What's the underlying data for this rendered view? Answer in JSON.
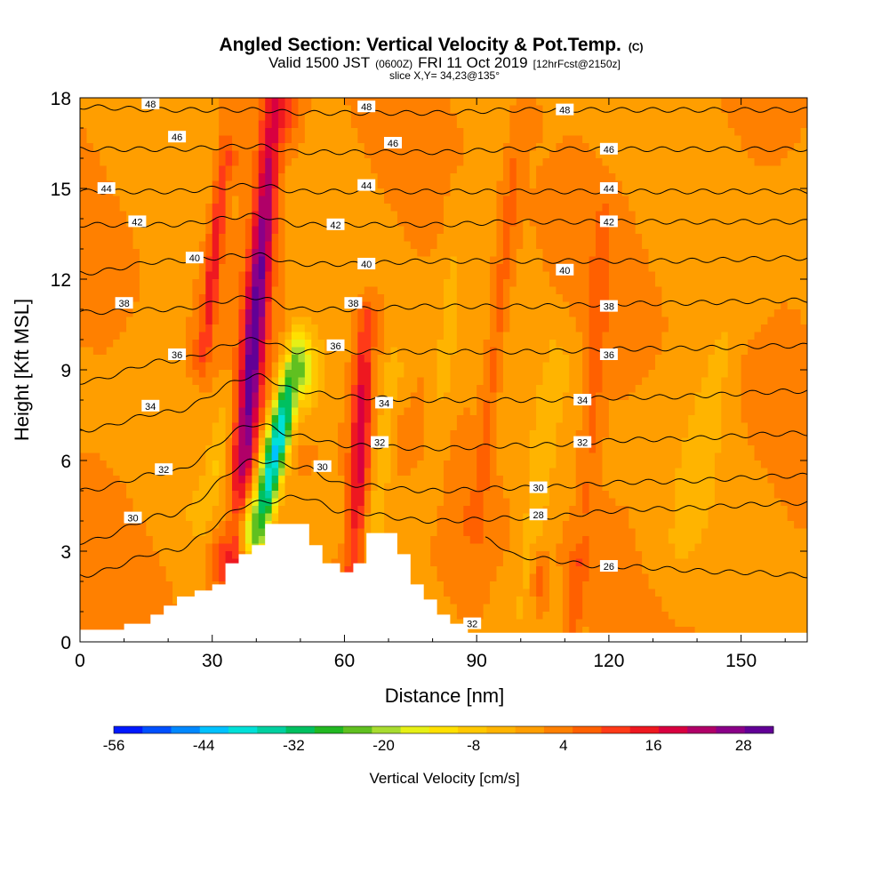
{
  "header": {
    "title_main": "Angled Section: Vertical Velocity & Pot.Temp.",
    "title_units": "(C)",
    "subtitle_prefix": "Valid 1500 JST",
    "subtitle_utc": "(0600Z)",
    "subtitle_date": "FRI 11 Oct 2019",
    "subtitle_fcst": "[12hrFcst@2150z]",
    "slice": "slice X,Y= 34,23@135°"
  },
  "colors": {
    "palette": [
      "#0019ff",
      "#0050ff",
      "#0088ff",
      "#00c2ff",
      "#00e0d8",
      "#00d0a0",
      "#00c060",
      "#22b822",
      "#60c020",
      "#a8dc30",
      "#e6f016",
      "#ffe000",
      "#ffc800",
      "#ffb400",
      "#ff9e00",
      "#ff8000",
      "#ff6000",
      "#ff3a18",
      "#ee1820",
      "#d80040",
      "#b00068",
      "#8a0088",
      "#620096"
    ],
    "terrain": "#ffffff",
    "contour": "#000000"
  },
  "chart_data": {
    "type": "heatmap",
    "title": "Angled Section: Vertical Velocity & Pot.Temp.",
    "xlabel": "Distance [nm]",
    "ylabel": "Height [Kft MSL]",
    "xlim": [
      0,
      165
    ],
    "ylim": [
      0,
      18
    ],
    "xticks": [
      "0",
      "30",
      "60",
      "90",
      "120",
      "150"
    ],
    "yticks": [
      "0",
      "3",
      "6",
      "9",
      "12",
      "15",
      "18"
    ],
    "colorbar": {
      "label": "Vertical Velocity [cm/s]",
      "min": -58,
      "step": 4,
      "ticks": [
        "-56",
        "-44",
        "-32",
        "-20",
        "-8",
        "4",
        "16",
        "28"
      ]
    },
    "terrain_kft": [
      [
        0,
        0.4
      ],
      [
        10,
        0.4
      ],
      [
        10,
        0.6
      ],
      [
        16,
        0.6
      ],
      [
        16,
        0.9
      ],
      [
        19,
        0.9
      ],
      [
        19,
        1.2
      ],
      [
        22,
        1.2
      ],
      [
        22,
        1.5
      ],
      [
        26,
        1.5
      ],
      [
        26,
        1.7
      ],
      [
        30,
        1.7
      ],
      [
        30,
        1.9
      ],
      [
        33,
        1.9
      ],
      [
        33,
        2.6
      ],
      [
        36,
        2.6
      ],
      [
        36,
        2.9
      ],
      [
        39,
        2.9
      ],
      [
        39,
        3.2
      ],
      [
        42,
        3.2
      ],
      [
        42,
        3.9
      ],
      [
        52,
        3.9
      ],
      [
        52,
        3.2
      ],
      [
        55,
        3.2
      ],
      [
        55,
        2.6
      ],
      [
        59,
        2.6
      ],
      [
        59,
        2.3
      ],
      [
        62,
        2.3
      ],
      [
        62,
        2.6
      ],
      [
        65,
        2.6
      ],
      [
        65,
        3.6
      ],
      [
        72,
        3.6
      ],
      [
        72,
        2.9
      ],
      [
        75,
        2.9
      ],
      [
        75,
        1.9
      ],
      [
        78,
        1.9
      ],
      [
        78,
        1.4
      ],
      [
        81,
        1.4
      ],
      [
        81,
        0.9
      ],
      [
        84,
        0.9
      ],
      [
        84,
        0.6
      ],
      [
        88,
        0.6
      ],
      [
        88,
        0.3
      ],
      [
        165,
        0.3
      ]
    ],
    "features": [
      {
        "x0": 35,
        "y0": 2.7,
        "x1": 44,
        "y1": 17.5,
        "w": 3.2,
        "amp": 30
      },
      {
        "x0": 62,
        "y0": 2.4,
        "x1": 65,
        "y1": 10.5,
        "w": 2.3,
        "amp": 20
      },
      {
        "x0": 28,
        "y0": 9.5,
        "x1": 33,
        "y1": 16.0,
        "w": 2.0,
        "amp": 16
      },
      {
        "x0": 90,
        "y0": 4.0,
        "x1": 100,
        "y1": 17.5,
        "w": 2.6,
        "amp": 7
      },
      {
        "x0": 114,
        "y0": 3.0,
        "x1": 119,
        "y1": 14.0,
        "w": 2.6,
        "amp": 6
      },
      {
        "x0": 112,
        "y0": 0.5,
        "x1": 113,
        "y1": 2.5,
        "w": 1.5,
        "amp": 9
      },
      {
        "x0": 104,
        "y0": 1.3,
        "x1": 104,
        "y1": 2.8,
        "w": 1.2,
        "amp": 7
      },
      {
        "x0": 40,
        "y0": 3.8,
        "x1": 49,
        "y1": 9.0,
        "w": 3.2,
        "amp": -46
      },
      {
        "x0": 28,
        "y0": 4.0,
        "x1": 34,
        "y1": 8.0,
        "w": 2.5,
        "amp": -6
      },
      {
        "x0": 67,
        "y0": 4.0,
        "x1": 71,
        "y1": 9.0,
        "w": 2.5,
        "amp": -8
      },
      {
        "x0": 135,
        "y0": 3.0,
        "x1": 150,
        "y1": 12.0,
        "w": 5.0,
        "amp": -5
      },
      {
        "x0": 80,
        "y0": 5.0,
        "x1": 86,
        "y1": 14.0,
        "w": 3.5,
        "amp": -5
      },
      {
        "x0": 100,
        "y0": 1.2,
        "x1": 108,
        "y1": 9.0,
        "w": 3.5,
        "amp": -6
      }
    ],
    "theta_contours": [
      {
        "value": 26,
        "anchors": [
          [
            92,
            3.4
          ],
          [
            100,
            2.8
          ],
          [
            120,
            2.5
          ],
          [
            150,
            2.3
          ],
          [
            165,
            2.2
          ]
        ]
      },
      {
        "value": 28,
        "anchors": [
          [
            0,
            2.2
          ],
          [
            20,
            3.0
          ],
          [
            40,
            4.6
          ],
          [
            50,
            4.8
          ],
          [
            60,
            4.3
          ],
          [
            80,
            4.0
          ],
          [
            100,
            4.1
          ],
          [
            130,
            4.4
          ],
          [
            165,
            4.6
          ]
        ]
      },
      {
        "value": 30,
        "anchors": [
          [
            0,
            3.3
          ],
          [
            20,
            4.2
          ],
          [
            40,
            6.0
          ],
          [
            50,
            5.8
          ],
          [
            60,
            5.2
          ],
          [
            80,
            5.0
          ],
          [
            100,
            5.1
          ],
          [
            130,
            5.3
          ],
          [
            165,
            5.5
          ]
        ]
      },
      {
        "value": 32,
        "anchors": [
          [
            0,
            5.0
          ],
          [
            20,
            5.6
          ],
          [
            40,
            7.2
          ],
          [
            50,
            6.8
          ],
          [
            60,
            6.5
          ],
          [
            80,
            6.4
          ],
          [
            100,
            6.5
          ],
          [
            130,
            6.7
          ],
          [
            165,
            6.9
          ]
        ]
      },
      {
        "value": 34,
        "anchors": [
          [
            0,
            7.0
          ],
          [
            20,
            7.6
          ],
          [
            40,
            8.8
          ],
          [
            50,
            8.3
          ],
          [
            60,
            8.1
          ],
          [
            80,
            8.0
          ],
          [
            100,
            8.0
          ],
          [
            130,
            8.1
          ],
          [
            165,
            8.3
          ]
        ]
      },
      {
        "value": 36,
        "anchors": [
          [
            0,
            8.6
          ],
          [
            20,
            9.3
          ],
          [
            40,
            10.0
          ],
          [
            50,
            9.6
          ],
          [
            60,
            9.6
          ],
          [
            80,
            9.6
          ],
          [
            100,
            9.6
          ],
          [
            130,
            9.7
          ],
          [
            165,
            9.8
          ]
        ]
      },
      {
        "value": 38,
        "anchors": [
          [
            0,
            10.9
          ],
          [
            20,
            11.0
          ],
          [
            40,
            11.4
          ],
          [
            50,
            11.0
          ],
          [
            60,
            11.0
          ],
          [
            80,
            11.1
          ],
          [
            100,
            11.1
          ],
          [
            130,
            11.2
          ],
          [
            165,
            11.3
          ]
        ]
      },
      {
        "value": 40,
        "anchors": [
          [
            0,
            12.2
          ],
          [
            20,
            12.6
          ],
          [
            40,
            12.8
          ],
          [
            50,
            12.5
          ],
          [
            60,
            12.5
          ],
          [
            80,
            12.6
          ],
          [
            100,
            12.6
          ],
          [
            130,
            12.6
          ],
          [
            165,
            12.7
          ]
        ]
      },
      {
        "value": 42,
        "anchors": [
          [
            0,
            13.8
          ],
          [
            20,
            13.8
          ],
          [
            40,
            14.1
          ],
          [
            50,
            13.8
          ],
          [
            60,
            13.8
          ],
          [
            80,
            13.8
          ],
          [
            100,
            13.9
          ],
          [
            130,
            13.9
          ],
          [
            165,
            13.9
          ]
        ]
      },
      {
        "value": 44,
        "anchors": [
          [
            0,
            14.9
          ],
          [
            20,
            14.9
          ],
          [
            40,
            15.1
          ],
          [
            50,
            14.9
          ],
          [
            60,
            14.9
          ],
          [
            80,
            14.9
          ],
          [
            100,
            14.9
          ],
          [
            130,
            14.9
          ],
          [
            165,
            14.9
          ]
        ]
      },
      {
        "value": 46,
        "anchors": [
          [
            0,
            16.3
          ],
          [
            20,
            16.3
          ],
          [
            40,
            16.4
          ],
          [
            50,
            16.2
          ],
          [
            60,
            16.2
          ],
          [
            80,
            16.2
          ],
          [
            100,
            16.3
          ],
          [
            130,
            16.3
          ],
          [
            165,
            16.3
          ]
        ]
      },
      {
        "value": 48,
        "anchors": [
          [
            0,
            17.7
          ],
          [
            20,
            17.6
          ],
          [
            40,
            17.6
          ],
          [
            50,
            17.5
          ],
          [
            60,
            17.5
          ],
          [
            80,
            17.5
          ],
          [
            100,
            17.6
          ],
          [
            130,
            17.6
          ],
          [
            165,
            17.6
          ]
        ]
      }
    ],
    "contour_labels": [
      {
        "text": "48",
        "x": 16,
        "y": 17.8
      },
      {
        "text": "48",
        "x": 65,
        "y": 17.7
      },
      {
        "text": "48",
        "x": 110,
        "y": 17.6
      },
      {
        "text": "46",
        "x": 22,
        "y": 16.7
      },
      {
        "text": "46",
        "x": 71,
        "y": 16.5
      },
      {
        "text": "46",
        "x": 120,
        "y": 16.3
      },
      {
        "text": "44",
        "x": 6,
        "y": 15.0
      },
      {
        "text": "44",
        "x": 65,
        "y": 15.1
      },
      {
        "text": "44",
        "x": 120,
        "y": 15.0
      },
      {
        "text": "42",
        "x": 13,
        "y": 13.9
      },
      {
        "text": "42",
        "x": 58,
        "y": 13.8
      },
      {
        "text": "42",
        "x": 120,
        "y": 13.9
      },
      {
        "text": "40",
        "x": 26,
        "y": 12.7
      },
      {
        "text": "40",
        "x": 65,
        "y": 12.5
      },
      {
        "text": "40",
        "x": 110,
        "y": 12.3
      },
      {
        "text": "38",
        "x": 10,
        "y": 11.2
      },
      {
        "text": "38",
        "x": 62,
        "y": 11.2
      },
      {
        "text": "38",
        "x": 120,
        "y": 11.1
      },
      {
        "text": "36",
        "x": 22,
        "y": 9.5
      },
      {
        "text": "36",
        "x": 58,
        "y": 9.8
      },
      {
        "text": "36",
        "x": 120,
        "y": 9.5
      },
      {
        "text": "34",
        "x": 16,
        "y": 7.8
      },
      {
        "text": "34",
        "x": 69,
        "y": 7.9
      },
      {
        "text": "34",
        "x": 114,
        "y": 8.0
      },
      {
        "text": "32",
        "x": 19,
        "y": 5.7
      },
      {
        "text": "32",
        "x": 68,
        "y": 6.6
      },
      {
        "text": "32",
        "x": 114,
        "y": 6.6
      },
      {
        "text": "30",
        "x": 12,
        "y": 4.1
      },
      {
        "text": "30",
        "x": 55,
        "y": 5.8
      },
      {
        "text": "30",
        "x": 104,
        "y": 5.1
      },
      {
        "text": "28",
        "x": 104,
        "y": 4.2
      },
      {
        "text": "26",
        "x": 120,
        "y": 2.5
      },
      {
        "text": "32",
        "x": 89,
        "y": 0.6
      }
    ]
  }
}
